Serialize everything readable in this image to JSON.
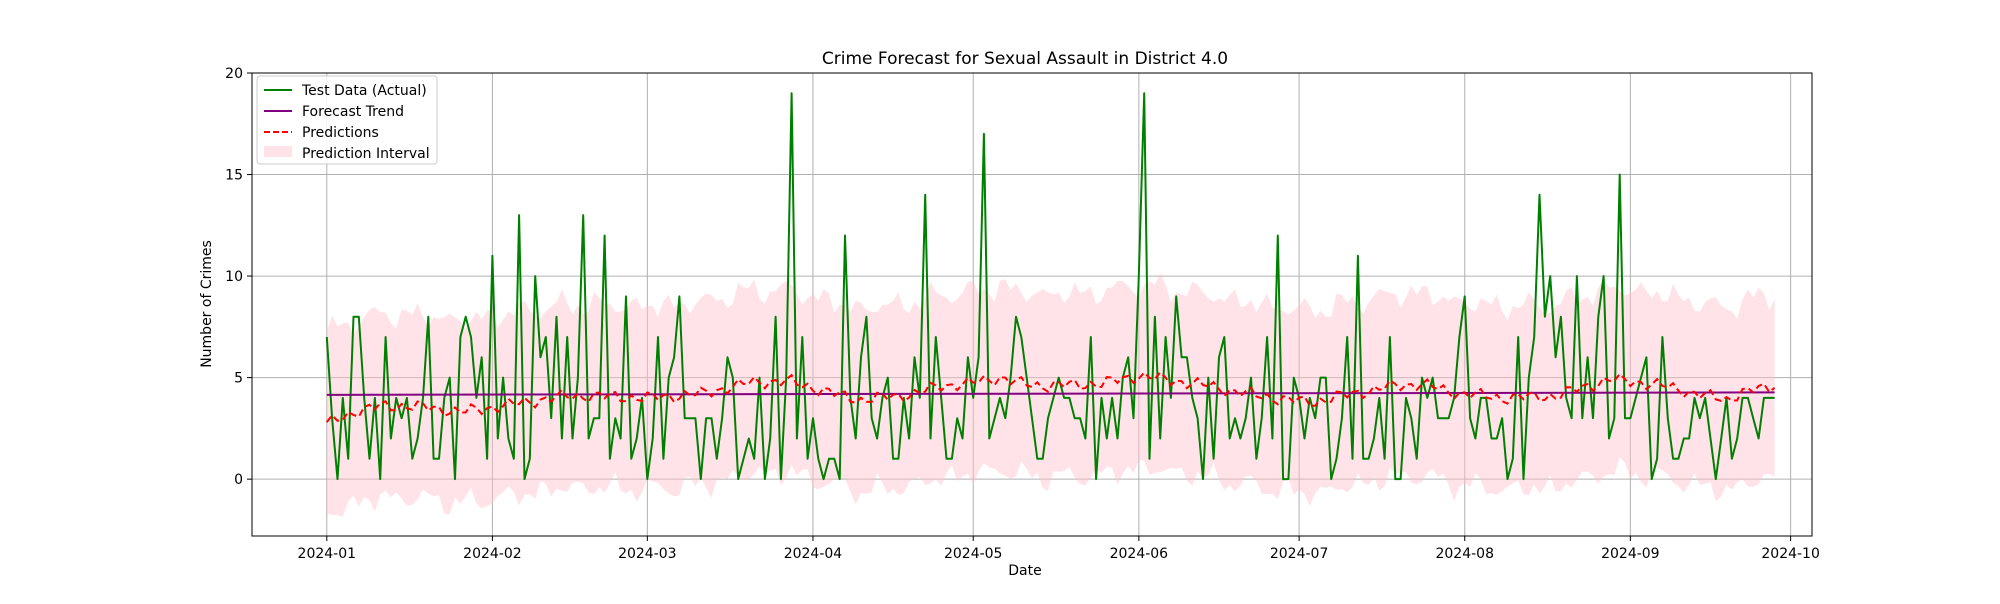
{
  "chart_data": {
    "type": "line",
    "title": "Crime Forecast for Sexual Assault in District 4.0",
    "xlabel": "Date",
    "ylabel": "Number of Crimes",
    "x_start": "2024-01-01",
    "x_end": "2024-09-21",
    "xlim": [
      "2023-12-18",
      "2024-10-05"
    ],
    "ylim": [
      -2.8,
      20
    ],
    "x_ticks": [
      "2024-01",
      "2024-02",
      "2024-03",
      "2024-04",
      "2024-05",
      "2024-06",
      "2024-07",
      "2024-08",
      "2024-09",
      "2024-10"
    ],
    "y_ticks": [
      "0",
      "5",
      "10",
      "15",
      "20"
    ],
    "grid": true,
    "legend_position": "top-left",
    "colors": {
      "actual": "#008000",
      "trend": "#800080",
      "predictions": "#ff0000",
      "interval": "#ffc0cb"
    },
    "series": [
      {
        "name": "Test Data (Actual)",
        "values": [
          7,
          3,
          0,
          4,
          1,
          8,
          8,
          4,
          1,
          4,
          0,
          7,
          2,
          4,
          3,
          4,
          1,
          2,
          4,
          8,
          1,
          1,
          4,
          5,
          0,
          7,
          8,
          7,
          4,
          6,
          1,
          11,
          2,
          5,
          2,
          1,
          13,
          0,
          1,
          10,
          6,
          7,
          3,
          8,
          2,
          7,
          2,
          5,
          13,
          2,
          3,
          3,
          12,
          1,
          3,
          2,
          9,
          1,
          2,
          4,
          0,
          2,
          7,
          1,
          5,
          6,
          9,
          3,
          3,
          3,
          0,
          3,
          3,
          1,
          3,
          6,
          5,
          0,
          1,
          2,
          1,
          5,
          0,
          2,
          8,
          0,
          5,
          19,
          2,
          7,
          1,
          3,
          1,
          0,
          1,
          1,
          0,
          12,
          4,
          2,
          6,
          8,
          3,
          2,
          4,
          5,
          1,
          1,
          4,
          2,
          6,
          4,
          14,
          2,
          7,
          4,
          1,
          1,
          3,
          2,
          6,
          4,
          6,
          17,
          2,
          3,
          4,
          3,
          5,
          8,
          7,
          5,
          3,
          1,
          1,
          3,
          4,
          5,
          4,
          4,
          3,
          3,
          2,
          7,
          0,
          4,
          2,
          4,
          2,
          5,
          6,
          3,
          10,
          19,
          1,
          8,
          2,
          7,
          4,
          9,
          6,
          6,
          4,
          3,
          0,
          5,
          1,
          6,
          7,
          2,
          3,
          2,
          3,
          5,
          1,
          3,
          7,
          2,
          12,
          0,
          0,
          5,
          4,
          2,
          4,
          3,
          5,
          5,
          0,
          1,
          3,
          7,
          1,
          11,
          1,
          1,
          2,
          4,
          1,
          7,
          0,
          0,
          4,
          3,
          1,
          5,
          4,
          5,
          3,
          3,
          3,
          4,
          7,
          9,
          3,
          2,
          4,
          4,
          2,
          2,
          3,
          0,
          1,
          7,
          0,
          5,
          7,
          14,
          8,
          10,
          6,
          8,
          4,
          3,
          10,
          3,
          6,
          3,
          8,
          10,
          2,
          3,
          15,
          3,
          3,
          4,
          5,
          6,
          0,
          1,
          7,
          3,
          1,
          1,
          2,
          2,
          4,
          3,
          4,
          2,
          0,
          2,
          4,
          1,
          2,
          4,
          4,
          3,
          2,
          4,
          4,
          4
        ],
        "style": "solid"
      },
      {
        "name": "Forecast Trend",
        "values": [
          4.15,
          4.27
        ],
        "style": "solid"
      },
      {
        "name": "Predictions",
        "style": "dashed",
        "anchors": [
          [
            0,
            2.7
          ],
          [
            5,
            3.3
          ],
          [
            10,
            3.6
          ],
          [
            15,
            3.6
          ],
          [
            20,
            3.5
          ],
          [
            25,
            3.3
          ],
          [
            30,
            3.5
          ],
          [
            35,
            3.7
          ],
          [
            40,
            3.9
          ],
          [
            45,
            4.1
          ],
          [
            50,
            4.1
          ],
          [
            60,
            4.0
          ],
          [
            70,
            4.2
          ],
          [
            80,
            4.8
          ],
          [
            87,
            4.8
          ],
          [
            95,
            4.2
          ],
          [
            100,
            3.9
          ],
          [
            110,
            4.2
          ],
          [
            115,
            4.6
          ],
          [
            120,
            4.7
          ],
          [
            126,
            5.0
          ],
          [
            130,
            4.7
          ],
          [
            135,
            4.6
          ],
          [
            145,
            4.7
          ],
          [
            152,
            5.1
          ],
          [
            160,
            4.8
          ],
          [
            165,
            4.6
          ],
          [
            170,
            4.3
          ],
          [
            180,
            3.9
          ],
          [
            185,
            3.8
          ],
          [
            190,
            4.1
          ],
          [
            200,
            4.6
          ],
          [
            205,
            4.7
          ],
          [
            210,
            4.3
          ],
          [
            220,
            4.0
          ],
          [
            230,
            4.1
          ],
          [
            235,
            4.5
          ],
          [
            240,
            4.9
          ],
          [
            245,
            4.8
          ],
          [
            250,
            4.6
          ],
          [
            255,
            4.3
          ],
          [
            260,
            4.0
          ],
          [
            262,
            3.9
          ],
          [
            265,
            4.3
          ],
          [
            270,
            4.5
          ],
          [
            273,
            5.0
          ],
          [
            276,
            5.0
          ],
          [
            280,
            5.5
          ],
          [
            283,
            5.6
          ],
          [
            285,
            5.6
          ],
          [
            289,
            5.5
          ]
        ]
      },
      {
        "name": "Prediction Interval",
        "half_width": 4.5
      }
    ]
  }
}
